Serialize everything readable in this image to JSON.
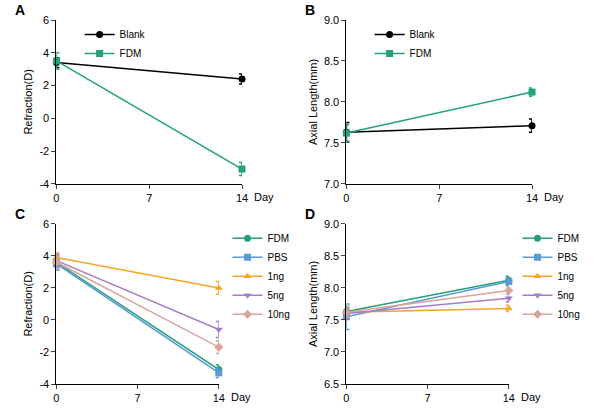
{
  "chart_data": [
    {
      "type": "line",
      "title": "A",
      "x_label": "Day",
      "y_label": "Refraction(D)",
      "x": [
        0,
        14
      ],
      "xlim": [
        0,
        14
      ],
      "xticks": [
        0,
        7,
        14
      ],
      "ylim": [
        -4,
        6
      ],
      "yticks": [
        -4,
        -2,
        0,
        2,
        4,
        6
      ],
      "legend": "upper left",
      "series": [
        {
          "name": "Blank",
          "color": "#000000",
          "marker": "circle",
          "values": [
            3.4,
            2.4
          ],
          "error": [
            0.3,
            0.3
          ]
        },
        {
          "name": "FDM",
          "color": "#24a17a",
          "marker": "square",
          "values": [
            3.5,
            -3.1
          ],
          "error": [
            0.5,
            0.4
          ]
        }
      ]
    },
    {
      "type": "line",
      "title": "B",
      "x_label": "Day",
      "y_label": "Axial Length(mm)",
      "x": [
        0,
        14
      ],
      "xlim": [
        0,
        14
      ],
      "xticks": [
        0,
        7,
        14
      ],
      "ylim": [
        7.0,
        9.0
      ],
      "yticks": [
        {
          "value": 7.0,
          "label": "7.0"
        },
        7.5,
        {
          "value": 8.0,
          "label": "8.0"
        },
        8.5,
        {
          "value": 9.0,
          "label": "9.0"
        }
      ],
      "legend": "upper left",
      "series": [
        {
          "name": "Blank",
          "color": "#000000",
          "marker": "circle",
          "values": [
            7.63,
            7.71
          ],
          "error": [
            0.12,
            0.08
          ]
        },
        {
          "name": "FDM",
          "color": "#24a17a",
          "marker": "square",
          "values": [
            7.62,
            8.12
          ],
          "error": [
            0.1,
            0.05
          ]
        }
      ]
    },
    {
      "type": "line",
      "title": "C",
      "x_label": "Day",
      "y_label": "Refraction(D)",
      "x": [
        0,
        14
      ],
      "xlim": [
        0,
        14
      ],
      "xticks": [
        0,
        7,
        14
      ],
      "ylim": [
        -4,
        6
      ],
      "yticks": [
        -4,
        -2,
        0,
        2,
        4,
        6
      ],
      "legend": "right",
      "series": [
        {
          "name": "FDM",
          "color": "#24a17a",
          "marker": "circle",
          "values": [
            3.6,
            -3.1
          ],
          "error": [
            0.4,
            0.3
          ]
        },
        {
          "name": "PBS",
          "color": "#5b9bd5",
          "marker": "square",
          "values": [
            3.5,
            -3.3
          ],
          "error": [
            0.4,
            0.3
          ]
        },
        {
          "name": "1ng",
          "color": "#f5a623",
          "marker": "triangle-up",
          "values": [
            3.9,
            2.0
          ],
          "error": [
            0.3,
            0.4
          ]
        },
        {
          "name": "5ng",
          "color": "#a57cc7",
          "marker": "triangle-down",
          "values": [
            3.7,
            -0.6
          ],
          "error": [
            0.4,
            0.5
          ]
        },
        {
          "name": "10ng",
          "color": "#d8a59c",
          "marker": "diamond",
          "values": [
            3.6,
            -1.7
          ],
          "error": [
            0.4,
            0.4
          ]
        }
      ]
    },
    {
      "type": "line",
      "title": "D",
      "x_label": "Day",
      "y_label": "Axial Length(mm)",
      "x": [
        0,
        14
      ],
      "xlim": [
        0,
        14
      ],
      "xticks": [
        0,
        7,
        14
      ],
      "ylim": [
        6.5,
        9.0
      ],
      "yticks": [
        6.5,
        {
          "value": 7.0,
          "label": "7.0"
        },
        7.5,
        {
          "value": 8.0,
          "label": "8.0"
        },
        8.5,
        {
          "value": 9.0,
          "label": "9.0"
        }
      ],
      "legend": "right",
      "series": [
        {
          "name": "FDM",
          "color": "#24a17a",
          "marker": "circle",
          "values": [
            7.63,
            8.12
          ],
          "error": [
            0.08,
            0.06
          ]
        },
        {
          "name": "PBS",
          "color": "#5b9bd5",
          "marker": "square",
          "values": [
            7.55,
            8.1
          ],
          "error": [
            0.2,
            0.06
          ]
        },
        {
          "name": "1ng",
          "color": "#f5a623",
          "marker": "triangle-up",
          "values": [
            7.62,
            7.68
          ],
          "error": [
            0.08,
            0.05
          ]
        },
        {
          "name": "5ng",
          "color": "#a57cc7",
          "marker": "triangle-down",
          "values": [
            7.6,
            7.84
          ],
          "error": [
            0.08,
            0.06
          ]
        },
        {
          "name": "10ng",
          "color": "#d8a59c",
          "marker": "diamond",
          "values": [
            7.62,
            7.96
          ],
          "error": [
            0.08,
            0.06
          ]
        }
      ]
    }
  ]
}
